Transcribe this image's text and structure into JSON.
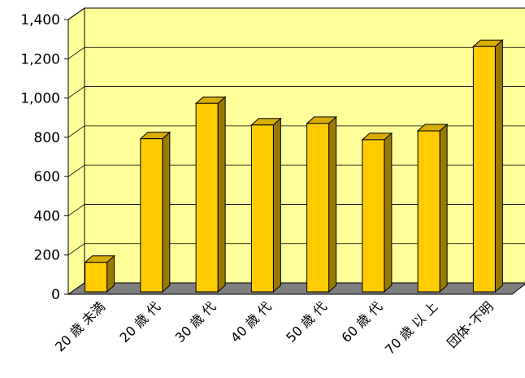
{
  "chart_data": {
    "type": "bar",
    "categories": [
      "20 歳 未満",
      "20 歳 代",
      "30 歳 代",
      "40 歳 代",
      "50 歳 代",
      "60 歳 代",
      "70 歳 以 上",
      "団体･不明"
    ],
    "values": [
      150,
      780,
      960,
      850,
      858,
      775,
      820,
      1250
    ],
    "ylim": [
      0,
      1400
    ],
    "yticks": [
      0,
      200,
      400,
      600,
      800,
      1000,
      1200,
      1400
    ],
    "ytick_labels": [
      "0",
      "200",
      "400",
      "600",
      "800",
      "1,000",
      "1,200",
      "1,400"
    ],
    "grid": true,
    "colors": {
      "wall": "#FFFF99",
      "floor": "#7F7F7F",
      "bar_front": "#FFCC00",
      "bar_side": "#997A00",
      "bar_top": "#D9AD00",
      "grid": "#000000"
    }
  }
}
